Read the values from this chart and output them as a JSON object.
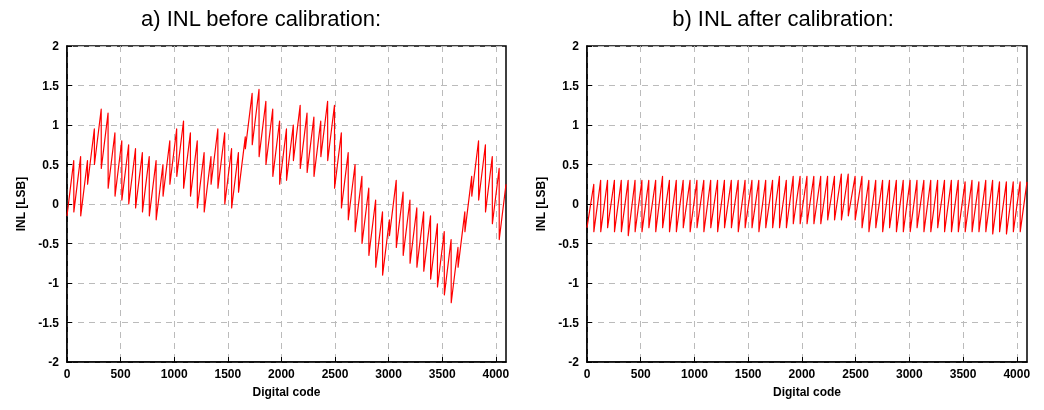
{
  "chart_data": [
    {
      "type": "line",
      "title": "a) INL before calibration:",
      "xlabel": "Digital code",
      "ylabel": "INL [LSB]",
      "xlim": [
        0,
        4095
      ],
      "ylim": [
        -2,
        2
      ],
      "xticks": [
        0,
        500,
        1000,
        1500,
        2000,
        2500,
        3000,
        3500,
        4000
      ],
      "yticks": [
        -2,
        -1.5,
        -1,
        -0.5,
        0,
        0.5,
        1,
        1.5,
        2
      ],
      "grid": true,
      "x": [
        0,
        63,
        64,
        127,
        128,
        191,
        192,
        255,
        256,
        319,
        320,
        383,
        384,
        447,
        448,
        511,
        512,
        575,
        576,
        639,
        640,
        703,
        704,
        767,
        768,
        831,
        832,
        895,
        896,
        959,
        960,
        1023,
        1024,
        1087,
        1088,
        1151,
        1152,
        1215,
        1216,
        1279,
        1280,
        1343,
        1344,
        1407,
        1408,
        1471,
        1472,
        1535,
        1536,
        1599,
        1600,
        1663,
        1664,
        1727,
        1728,
        1791,
        1792,
        1855,
        1856,
        1919,
        1920,
        1983,
        1984,
        2047,
        2048,
        2111,
        2112,
        2175,
        2176,
        2239,
        2240,
        2303,
        2304,
        2367,
        2368,
        2431,
        2432,
        2495,
        2496,
        2559,
        2560,
        2623,
        2624,
        2687,
        2688,
        2751,
        2752,
        2815,
        2816,
        2879,
        2880,
        2943,
        2944,
        3007,
        3008,
        3071,
        3072,
        3135,
        3136,
        3199,
        3200,
        3263,
        3264,
        3327,
        3328,
        3391,
        3392,
        3455,
        3456,
        3519,
        3520,
        3583,
        3584,
        3647,
        3648,
        3711,
        3712,
        3775,
        3776,
        3839,
        3840,
        3903,
        3904,
        3967,
        3968,
        4031,
        4032,
        4095
      ],
      "series": [
        {
          "color": "#ff0000",
          "values": [
            -0.15,
            0.55,
            -0.1,
            0.6,
            -0.15,
            0.55,
            0.25,
            0.95,
            0.5,
            1.2,
            0.45,
            1.15,
            0.2,
            0.9,
            0.1,
            0.8,
            0.05,
            0.75,
            0,
            0.7,
            -0.05,
            0.65,
            -0.1,
            0.6,
            -0.15,
            0.55,
            -0.2,
            0.5,
            0.1,
            0.8,
            0.25,
            0.95,
            0.35,
            1.05,
            0.2,
            0.9,
            0.1,
            0.8,
            -0.05,
            0.65,
            -0.1,
            0.6,
            0.25,
            0.95,
            0.2,
            0.9,
            0,
            0.7,
            -0.05,
            0.65,
            0.15,
            0.85,
            0.7,
            1.4,
            0.75,
            1.45,
            0.6,
            1.3,
            0.5,
            1.2,
            0.35,
            1.05,
            0.25,
            0.95,
            0.3,
            1.0,
            0.55,
            1.25,
            0.45,
            1.15,
            0.4,
            1.1,
            0.35,
            1.05,
            0.6,
            1.3,
            0.55,
            1.25,
            0.2,
            0.9,
            -0.05,
            0.65,
            -0.2,
            0.5,
            -0.35,
            0.35,
            -0.5,
            0.2,
            -0.65,
            0.05,
            -0.8,
            -0.1,
            -0.9,
            -0.2,
            -0.4,
            0.3,
            -0.55,
            0.15,
            -0.65,
            0.05,
            -0.75,
            -0.05,
            -0.8,
            -0.1,
            -0.85,
            -0.15,
            -0.95,
            -0.25,
            -1.05,
            -0.35,
            -1.15,
            -0.45,
            -1.25,
            -0.55,
            -0.8,
            -0.1,
            -0.35,
            0.35,
            0.1,
            0.8,
            0.05,
            0.75,
            -0.1,
            0.6,
            -0.25,
            0.45,
            -0.45,
            0.25
          ]
        }
      ]
    },
    {
      "type": "line",
      "title": "b) INL after calibration:",
      "xlabel": "Digital code",
      "ylabel": "INL [LSB]",
      "xlim": [
        0,
        4095
      ],
      "ylim": [
        -2,
        2
      ],
      "xticks": [
        0,
        500,
        1000,
        1500,
        2000,
        2500,
        3000,
        3500,
        4000
      ],
      "yticks": [
        -2,
        -1.5,
        -1,
        -0.5,
        0,
        0.5,
        1,
        1.5,
        2
      ],
      "grid": true,
      "x": [
        0,
        63,
        64,
        127,
        128,
        191,
        192,
        255,
        256,
        319,
        320,
        383,
        384,
        447,
        448,
        511,
        512,
        575,
        576,
        639,
        640,
        703,
        704,
        767,
        768,
        831,
        832,
        895,
        896,
        959,
        960,
        1023,
        1024,
        1087,
        1088,
        1151,
        1152,
        1215,
        1216,
        1279,
        1280,
        1343,
        1344,
        1407,
        1408,
        1471,
        1472,
        1535,
        1536,
        1599,
        1600,
        1663,
        1664,
        1727,
        1728,
        1791,
        1792,
        1855,
        1856,
        1919,
        1920,
        1983,
        1984,
        2047,
        2048,
        2111,
        2112,
        2175,
        2176,
        2239,
        2240,
        2303,
        2304,
        2367,
        2368,
        2431,
        2432,
        2495,
        2496,
        2559,
        2560,
        2623,
        2624,
        2687,
        2688,
        2751,
        2752,
        2815,
        2816,
        2879,
        2880,
        2943,
        2944,
        3007,
        3008,
        3071,
        3072,
        3135,
        3136,
        3199,
        3200,
        3263,
        3264,
        3327,
        3328,
        3391,
        3392,
        3455,
        3456,
        3519,
        3520,
        3583,
        3584,
        3647,
        3648,
        3711,
        3712,
        3775,
        3776,
        3839,
        3840,
        3903,
        3904,
        3967,
        3968,
        4031,
        4032,
        4095
      ],
      "series": [
        {
          "color": "#ff0000",
          "values": [
            -0.3,
            0.25,
            -0.35,
            0.3,
            -0.35,
            0.3,
            -0.3,
            0.3,
            -0.35,
            0.3,
            -0.35,
            0.3,
            -0.4,
            0.3,
            -0.35,
            0.3,
            -0.35,
            0.3,
            -0.3,
            0.3,
            -0.35,
            0.35,
            -0.3,
            0.3,
            -0.35,
            0.3,
            -0.35,
            0.3,
            -0.3,
            0.3,
            -0.35,
            0.3,
            -0.3,
            0.3,
            -0.35,
            0.3,
            -0.3,
            0.3,
            -0.35,
            0.3,
            -0.3,
            0.3,
            -0.3,
            0.3,
            -0.35,
            0.3,
            -0.3,
            0.3,
            -0.3,
            0.3,
            -0.35,
            0.3,
            -0.3,
            0.3,
            -0.3,
            0.35,
            -0.3,
            0.3,
            -0.3,
            0.35,
            -0.25,
            0.35,
            -0.25,
            0.35,
            -0.25,
            0.35,
            -0.25,
            0.35,
            -0.25,
            0.35,
            -0.2,
            0.35,
            -0.2,
            0.38,
            -0.2,
            0.38,
            -0.15,
            0.35,
            -0.2,
            0.35,
            -0.3,
            0.3,
            -0.35,
            0.3,
            -0.3,
            0.3,
            -0.35,
            0.3,
            -0.3,
            0.3,
            -0.35,
            0.3,
            -0.35,
            0.3,
            -0.35,
            0.3,
            -0.3,
            0.3,
            -0.35,
            0.3,
            -0.35,
            0.3,
            -0.3,
            0.3,
            -0.35,
            0.3,
            -0.35,
            0.3,
            -0.35,
            0.28,
            -0.35,
            0.3,
            -0.35,
            0.28,
            -0.35,
            0.3,
            -0.35,
            0.3,
            -0.38,
            0.28,
            -0.35,
            0.28,
            -0.38,
            0.28,
            -0.35,
            0.28,
            -0.35,
            0.28
          ]
        }
      ]
    }
  ]
}
